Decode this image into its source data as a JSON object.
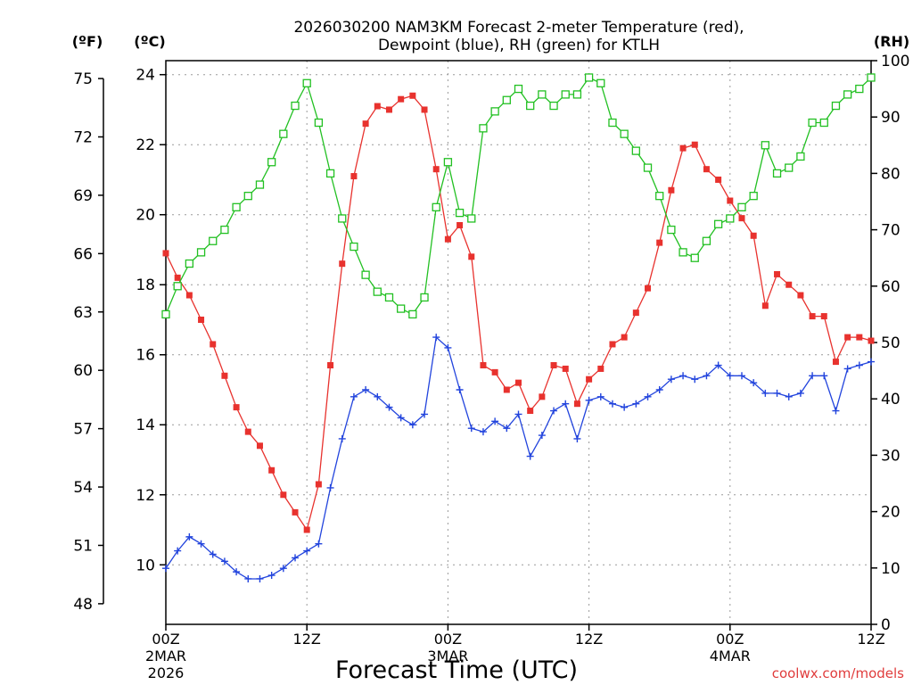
{
  "title_line1": "2026030200 NAM3KM Forecast 2-meter Temperature (red),",
  "title_line2": "Dewpoint (blue), RH (green) for KTLH",
  "watermark": "coolwx.com/models",
  "chart_data": {
    "type": "line",
    "title": "2026030200 NAM3KM Forecast 2-meter Temperature (red), Dewpoint (blue), RH (green) for KTLH",
    "xlabel": "Forecast Time (UTC)",
    "x_unit": "forecast hours since 2026-03-02 00Z",
    "xlim": [
      0,
      60
    ],
    "x_ticks": [
      {
        "hour": 0,
        "label": "00Z",
        "sub1": "2MAR",
        "sub2": "2026"
      },
      {
        "hour": 12,
        "label": "12Z",
        "sub1": "",
        "sub2": ""
      },
      {
        "hour": 24,
        "label": "00Z",
        "sub1": "3MAR",
        "sub2": ""
      },
      {
        "hour": 36,
        "label": "12Z",
        "sub1": "",
        "sub2": ""
      },
      {
        "hour": 48,
        "label": "00Z",
        "sub1": "4MAR",
        "sub2": ""
      },
      {
        "hour": 60,
        "label": "12Z",
        "sub1": "",
        "sub2": ""
      }
    ],
    "axes": {
      "celsius": {
        "label": "(ºC)",
        "lim": [
          8.3,
          24.4
        ],
        "ticks": [
          10,
          12,
          14,
          16,
          18,
          20,
          22,
          24
        ]
      },
      "fahrenheit": {
        "label": "(ºF)",
        "ticks": [
          48,
          51,
          54,
          57,
          60,
          63,
          66,
          69,
          72,
          75
        ]
      },
      "rh": {
        "label": "(RH)",
        "lim": [
          0,
          100
        ],
        "ticks": [
          0,
          10,
          20,
          30,
          40,
          50,
          60,
          70,
          80,
          90,
          100
        ]
      }
    },
    "grid": true,
    "series": [
      {
        "name": "2-meter Temperature",
        "unit": "C",
        "color": "#e8322e",
        "marker": "filled-square",
        "values": [
          18.9,
          18.2,
          17.7,
          17.0,
          16.3,
          15.4,
          14.5,
          13.8,
          13.4,
          12.7,
          12.0,
          11.5,
          11.0,
          12.3,
          15.7,
          18.6,
          21.1,
          22.6,
          23.1,
          23.0,
          23.3,
          23.4,
          23.0,
          21.3,
          19.3,
          19.7,
          18.8,
          15.7,
          15.5,
          15.0,
          15.2,
          14.4,
          14.8,
          15.7,
          15.6,
          14.6,
          15.3,
          15.6,
          16.3,
          16.5,
          17.2,
          17.9,
          19.2,
          20.7,
          21.9,
          22.0,
          21.3,
          21.0,
          20.4,
          19.9,
          19.4,
          17.4,
          18.3,
          18.0,
          17.7,
          17.1,
          17.1,
          15.8,
          16.5,
          16.5,
          16.4
        ]
      },
      {
        "name": "Dewpoint",
        "unit": "C",
        "color": "#2244dd",
        "marker": "plus",
        "values": [
          9.9,
          10.4,
          10.8,
          10.6,
          10.3,
          10.1,
          9.8,
          9.6,
          9.6,
          9.7,
          9.9,
          10.2,
          10.4,
          10.6,
          12.2,
          13.6,
          14.8,
          15.0,
          14.8,
          14.5,
          14.2,
          14.0,
          14.3,
          16.5,
          16.2,
          15.0,
          13.9,
          13.8,
          14.1,
          13.9,
          14.3,
          13.1,
          13.7,
          14.4,
          14.6,
          13.6,
          14.7,
          14.8,
          14.6,
          14.5,
          14.6,
          14.8,
          15.0,
          15.3,
          15.4,
          15.3,
          15.4,
          15.7,
          15.4,
          15.4,
          15.2,
          14.9,
          14.9,
          14.8,
          14.9,
          15.4,
          15.4,
          14.4,
          15.6,
          15.7,
          15.8
        ]
      },
      {
        "name": "RH",
        "unit": "%",
        "color": "#22c022",
        "marker": "open-square",
        "values": [
          55,
          60,
          64,
          66,
          68,
          70,
          74,
          76,
          78,
          82,
          87,
          92,
          96,
          89,
          80,
          72,
          67,
          62,
          59,
          58,
          56,
          55,
          58,
          74,
          82,
          73,
          72,
          88,
          91,
          93,
          95,
          92,
          94,
          92,
          94,
          94,
          97,
          96,
          89,
          87,
          84,
          81,
          76,
          70,
          66,
          65,
          68,
          71,
          72,
          74,
          76,
          85,
          80,
          81,
          83,
          89,
          89,
          92,
          94,
          95,
          97
        ]
      }
    ]
  }
}
